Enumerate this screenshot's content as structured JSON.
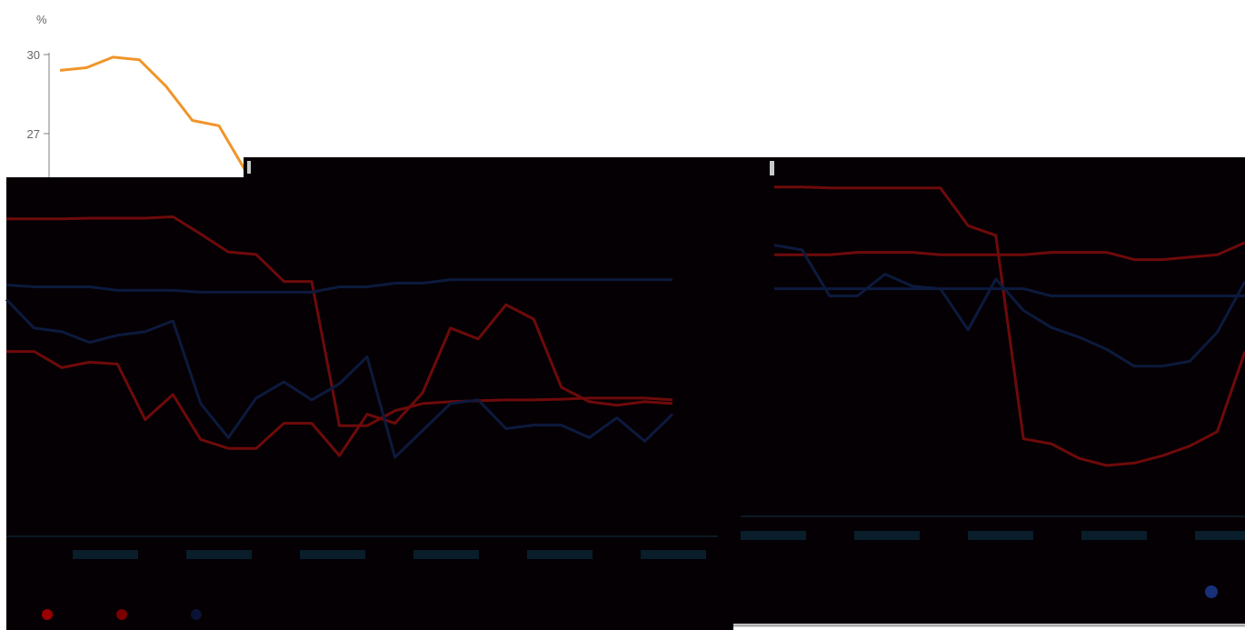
{
  "colors": {
    "background": "#ffffff",
    "overlay": "#050004",
    "top_line": "#f0952a",
    "axis": "#7f7f7f",
    "red_series": "#6e0a0a",
    "blue_series": "#0c1a3d",
    "ghost_label": "#0b2a3a",
    "scrollbar": "#a8a8a8"
  },
  "chart_data": [
    {
      "type": "line",
      "title": "",
      "ylabel": "%",
      "ylim": [
        25.5,
        31
      ],
      "yticks": [
        27,
        30
      ],
      "grid": false,
      "series": [
        {
          "color": "#f0952a",
          "x": [
            0,
            1,
            2,
            3,
            4,
            5,
            6,
            7
          ],
          "values": [
            29.4,
            29.5,
            29.9,
            29.8,
            28.8,
            27.5,
            27.3,
            25.6
          ]
        }
      ]
    },
    {
      "type": "line",
      "title": "",
      "grid": false,
      "series": [
        {
          "color": "#6e0a0a",
          "x": [
            0,
            1,
            2,
            3,
            4,
            5,
            6,
            7,
            8,
            9,
            10,
            11,
            12,
            13,
            14,
            15,
            16,
            17,
            18,
            19,
            20,
            21,
            22,
            23,
            24
          ],
          "values": [
            88.4,
            88.4,
            88.4,
            88.6,
            88.6,
            88.6,
            89.0,
            84.2,
            79.2,
            78.5,
            71.0,
            71.0,
            30.8,
            30.8,
            35.0,
            37.0,
            37.5,
            37.8,
            38.0,
            38.0,
            38.2,
            38.5,
            38.5,
            38.5,
            38.0
          ]
        },
        {
          "color": "#6e0a0a",
          "x": [
            0,
            1,
            2,
            3,
            4,
            5,
            6,
            7,
            8,
            9,
            10,
            11,
            12,
            13,
            14,
            15,
            16,
            17,
            18,
            19,
            20,
            21,
            22,
            23,
            24
          ],
          "values": [
            51.5,
            51.5,
            47.0,
            48.5,
            48.0,
            32.5,
            39.5,
            27.0,
            24.5,
            24.5,
            31.5,
            31.5,
            22.5,
            34.0,
            31.5,
            40.0,
            58.0,
            55.0,
            64.5,
            60.5,
            41.5,
            37.5,
            36.5,
            37.5,
            37.0
          ]
        },
        {
          "color": "#0c1a3d",
          "x": [
            0,
            1,
            2,
            3,
            4,
            5,
            6,
            7,
            8,
            9,
            10,
            11,
            12,
            13,
            14,
            15,
            16,
            17,
            18,
            19,
            20,
            21,
            22,
            23,
            24
          ],
          "values": [
            70.0,
            69.5,
            69.5,
            69.5,
            68.5,
            68.5,
            68.5,
            68.0,
            68.0,
            68.0,
            68.0,
            68.0,
            69.5,
            69.5,
            70.5,
            70.5,
            71.5,
            71.5,
            71.5,
            71.5,
            71.5,
            71.5,
            71.5,
            71.5,
            71.5
          ]
        },
        {
          "color": "#0c1a3d",
          "x": [
            0,
            1,
            2,
            3,
            4,
            5,
            6,
            7,
            8,
            9,
            10,
            11,
            12,
            13,
            14,
            15,
            16,
            17,
            18,
            19,
            20,
            21,
            22,
            23,
            24
          ],
          "values": [
            66.0,
            58.0,
            57.0,
            54.0,
            56.0,
            57.0,
            60.0,
            37.0,
            27.5,
            38.5,
            43.0,
            38.0,
            42.5,
            50.0,
            22.0,
            29.5,
            37.0,
            38.0,
            30.0,
            31.0,
            31.0,
            27.5,
            33.0,
            26.5,
            34.0
          ]
        }
      ]
    },
    {
      "type": "line",
      "title": "",
      "grid": false,
      "series": [
        {
          "color": "#6e0a0a",
          "x": [
            0,
            1,
            2,
            3,
            4,
            5,
            6,
            7,
            8,
            9,
            10,
            11,
            12,
            13,
            14,
            15,
            16,
            17
          ],
          "values": [
            98.0,
            98.0,
            97.8,
            97.8,
            97.8,
            97.8,
            97.8,
            90.0,
            88.0,
            46.0,
            45.0,
            42.0,
            40.5,
            41.0,
            42.5,
            44.5,
            47.5,
            64.0
          ]
        },
        {
          "color": "#6e0a0a",
          "x": [
            0,
            1,
            2,
            3,
            4,
            5,
            6,
            7,
            8,
            9,
            10,
            11,
            12,
            13,
            14,
            15,
            16,
            17
          ],
          "values": [
            84.0,
            84.0,
            84.0,
            84.5,
            84.5,
            84.5,
            84.0,
            84.0,
            84.0,
            84.0,
            84.5,
            84.5,
            84.5,
            83.0,
            83.0,
            83.5,
            84.0,
            86.5
          ]
        },
        {
          "color": "#0c1a3d",
          "x": [
            0,
            1,
            2,
            3,
            4,
            5,
            6,
            7,
            8,
            9,
            10,
            11,
            12,
            13,
            14,
            15,
            16,
            17
          ],
          "values": [
            77.0,
            77.0,
            77.0,
            77.0,
            77.0,
            77.0,
            77.0,
            77.0,
            77.0,
            77.0,
            75.5,
            75.5,
            75.5,
            75.5,
            75.5,
            75.5,
            75.5,
            75.5
          ]
        },
        {
          "color": "#0c1a3d",
          "x": [
            0,
            1,
            2,
            3,
            4,
            5,
            6,
            7,
            8,
            9,
            10,
            11,
            12,
            13,
            14,
            15,
            16,
            17
          ],
          "values": [
            86.0,
            85.0,
            75.5,
            75.5,
            80.0,
            77.5,
            77.0,
            68.5,
            79.0,
            72.5,
            69.0,
            67.0,
            64.5,
            61.0,
            61.0,
            62.0,
            68.0,
            78.5
          ]
        }
      ]
    }
  ]
}
